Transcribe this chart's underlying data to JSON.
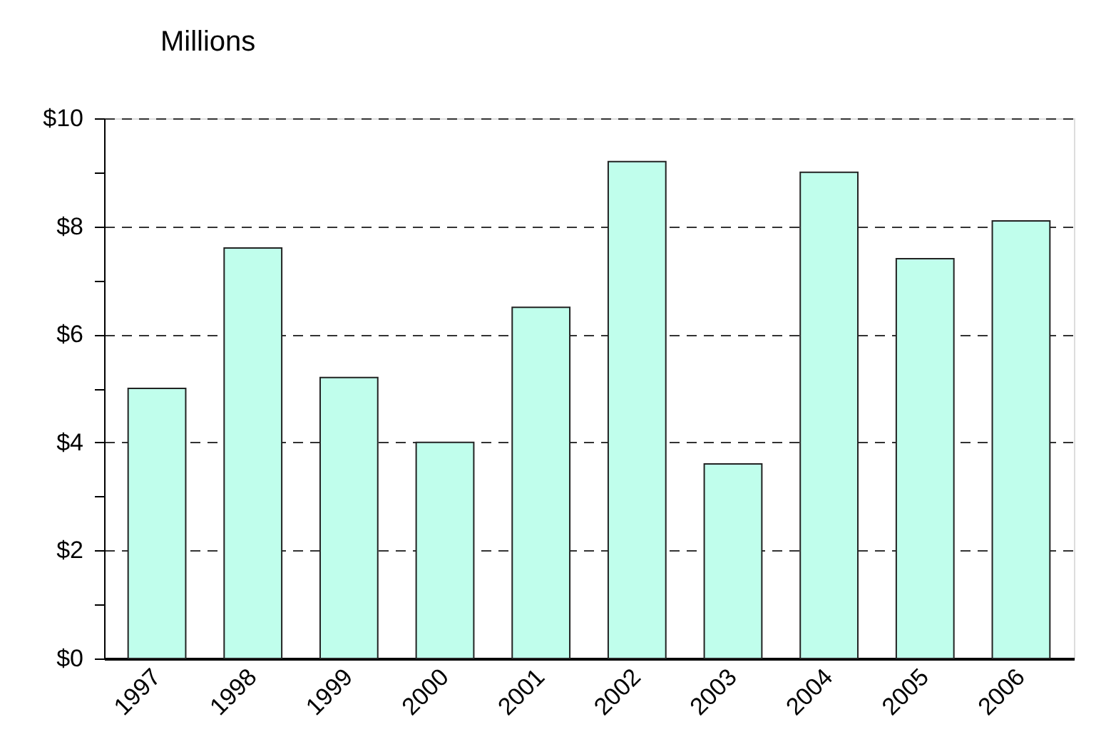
{
  "chart_data": {
    "type": "bar",
    "ylabel": "Millions",
    "categories": [
      "1997",
      "1998",
      "1999",
      "2000",
      "2001",
      "2002",
      "2003",
      "2004",
      "2005",
      "2006"
    ],
    "values": [
      5.0,
      7.6,
      5.2,
      4.0,
      6.5,
      9.2,
      3.6,
      9.0,
      7.4,
      8.1
    ],
    "color": "#c0feec",
    "ylim": [
      0,
      10
    ],
    "yticks": [
      {
        "value": 0,
        "label": "$0"
      },
      {
        "value": 1,
        "label": null
      },
      {
        "value": 2,
        "label": "$2"
      },
      {
        "value": 3,
        "label": null
      },
      {
        "value": 4,
        "label": "$4"
      },
      {
        "value": 5,
        "label": null
      },
      {
        "value": 6,
        "label": "$6"
      },
      {
        "value": 7,
        "label": null
      },
      {
        "value": 8,
        "label": "$8"
      },
      {
        "value": 9,
        "label": null
      },
      {
        "value": 10,
        "label": "$10"
      }
    ],
    "grid": "y"
  }
}
